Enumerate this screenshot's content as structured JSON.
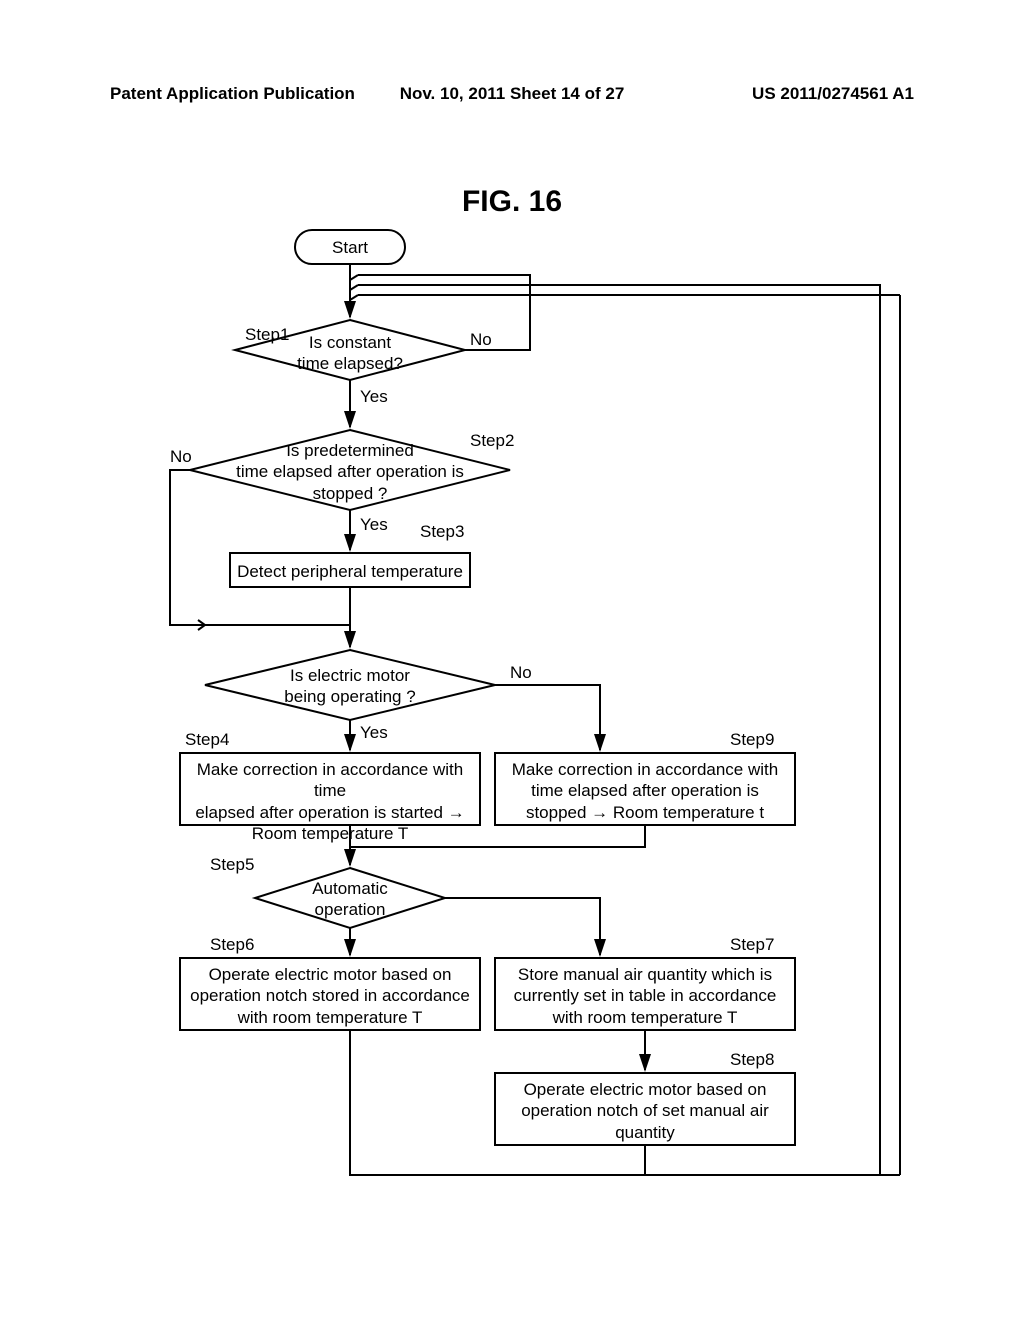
{
  "header": {
    "left": "Patent Application Publication",
    "center": "Nov. 10, 2011  Sheet 14 of 27",
    "right": "US 2011/0274561 A1"
  },
  "figure_title": "FIG. 16",
  "nodes": {
    "start": "Start",
    "step1": {
      "label": "Step1",
      "text": "Is constant\ntime elapsed?",
      "yes": "Yes",
      "no": "No"
    },
    "step2": {
      "label": "Step2",
      "text": "Is predetermined\ntime elapsed after operation is\nstopped ?",
      "yes": "Yes",
      "no": "No"
    },
    "step3": {
      "text": "Detect peripheral temperature"
    },
    "step3b": {
      "label": "Step3",
      "text": "Is electric motor\nbeing operating ?",
      "yes": "Yes",
      "no": "No"
    },
    "step4": {
      "label": "Step4",
      "text": "Make correction in accordance with time\nelapsed after operation is started  →\nRoom temperature T"
    },
    "step5": {
      "label": "Step5",
      "text": "Automatic\noperation"
    },
    "step6": {
      "label": "Step6",
      "text": "Operate electric motor based on\noperation notch stored in accordance\nwith room temperature T"
    },
    "step7": {
      "label": "Step7",
      "text": "Store manual air quantity which is\ncurrently set in table in accordance\nwith room temperature T"
    },
    "step8": {
      "label": "Step8",
      "text": "Operate electric motor based on\noperation notch of set manual air\nquantity"
    },
    "step9": {
      "label": "Step9",
      "text": "Make correction in accordance with\ntime elapsed after operation is\nstopped  →  Room temperature t"
    }
  },
  "style": {
    "stroke": "#000000",
    "stroke_width": 2,
    "bg": "#ffffff",
    "font_size": 17,
    "title_font_size": 30
  }
}
